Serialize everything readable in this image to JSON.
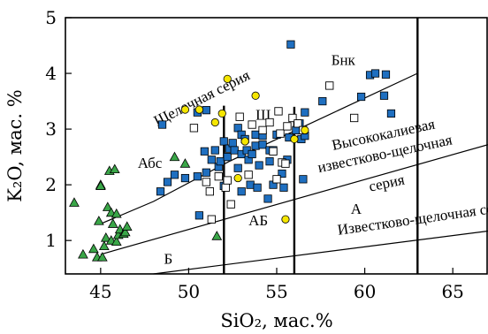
{
  "chart_data": {
    "type": "scatter",
    "xlabel": "SiO₂, мас.%",
    "ylabel": "K₂O, мас. %",
    "xlim": [
      43,
      67
    ],
    "ylim": [
      0.4,
      5
    ],
    "xticks": [
      45,
      50,
      55,
      60,
      65
    ],
    "yticks": [
      1,
      2,
      3,
      4,
      5
    ],
    "xtick_labels": [
      "45",
      "50",
      "55",
      "60",
      "65"
    ],
    "ytick_labels": [
      "1",
      "2",
      "3",
      "4",
      "5"
    ],
    "grid": false,
    "colors": {
      "triangle_fill": "#3aa648",
      "blue_square_fill": "#1f6fc0",
      "circle_fill": "#f5e600",
      "stroke": "#000000"
    },
    "boundary_lines": [
      {
        "name": "Щелочная серия boundary",
        "points": [
          [
            45,
            1.3
          ],
          [
            48,
            1.7
          ],
          [
            52.3,
            2.42
          ],
          [
            63,
            4.0
          ]
        ]
      },
      {
        "name": "Высококалиевая boundary",
        "points": [
          [
            45,
            0.75
          ],
          [
            67,
            2.72
          ]
        ]
      },
      {
        "name": "Известково-щелочная boundary",
        "points": [
          [
            48,
            0.4
          ],
          [
            67,
            1.17
          ]
        ]
      },
      {
        "name": "vertical 52",
        "points": [
          [
            52,
            0.4
          ],
          [
            52,
            3.42
          ]
        ]
      },
      {
        "name": "vertical 56",
        "points": [
          [
            56,
            0.4
          ],
          [
            56,
            3.4
          ]
        ]
      },
      {
        "name": "vertical 63",
        "points": [
          [
            63,
            0.4
          ],
          [
            63,
            5.0
          ]
        ]
      }
    ],
    "region_labels": [
      {
        "text": "Щелочная серия",
        "x": 48.2,
        "y": 3.05,
        "rotate": -27
      },
      {
        "text": "Бнк",
        "x": 58.1,
        "y": 4.15,
        "rotate": 0
      },
      {
        "text": "Ш",
        "x": 53.8,
        "y": 3.17,
        "rotate": 0
      },
      {
        "text": "Высококалиевая",
        "x": 58.2,
        "y": 2.62,
        "rotate": -12
      },
      {
        "text": "известково-щелочная",
        "x": 57.4,
        "y": 2.22,
        "rotate": -12
      },
      {
        "text": "серия",
        "x": 60.3,
        "y": 1.88,
        "rotate": -12
      },
      {
        "text": "Абс",
        "x": 47.1,
        "y": 2.3,
        "rotate": 0
      },
      {
        "text": "А",
        "x": 59.2,
        "y": 1.48,
        "rotate": 0
      },
      {
        "text": "АБ",
        "x": 53.4,
        "y": 1.27,
        "rotate": 0
      },
      {
        "text": "Известково-щелочная серия",
        "x": 58.5,
        "y": 1.1,
        "rotate": -8
      },
      {
        "text": "Б",
        "x": 48.6,
        "y": 0.58,
        "rotate": 0
      }
    ],
    "series": [
      {
        "marker": "triangle",
        "points": [
          [
            43.5,
            1.68
          ],
          [
            44.0,
            0.75
          ],
          [
            44.6,
            0.85
          ],
          [
            44.8,
            0.7
          ],
          [
            44.9,
            1.35
          ],
          [
            45.0,
            2.0
          ],
          [
            45.0,
            1.98
          ],
          [
            45.1,
            0.7
          ],
          [
            45.2,
            0.9
          ],
          [
            45.3,
            1.05
          ],
          [
            45.4,
            1.6
          ],
          [
            45.5,
            2.25
          ],
          [
            45.6,
            1.5
          ],
          [
            45.6,
            1.0
          ],
          [
            45.7,
            1.3
          ],
          [
            45.8,
            2.28
          ],
          [
            45.9,
            1.48
          ],
          [
            45.9,
            0.98
          ],
          [
            46.0,
            1.1
          ],
          [
            46.1,
            1.2
          ],
          [
            46.3,
            1.12
          ],
          [
            46.4,
            1.15
          ],
          [
            46.5,
            1.25
          ],
          [
            49.2,
            2.5
          ],
          [
            49.8,
            2.38
          ],
          [
            51.6,
            1.08
          ]
        ]
      },
      {
        "marker": "blue-square",
        "points": [
          [
            48.5,
            3.08
          ],
          [
            48.4,
            1.88
          ],
          [
            48.8,
            2.05
          ],
          [
            49.2,
            2.18
          ],
          [
            49.8,
            2.12
          ],
          [
            50.5,
            2.15
          ],
          [
            50.5,
            3.3
          ],
          [
            50.6,
            1.45
          ],
          [
            50.9,
            2.6
          ],
          [
            51.0,
            3.34
          ],
          [
            51.0,
            2.22
          ],
          [
            51.3,
            2.45
          ],
          [
            51.5,
            2.62
          ],
          [
            51.7,
            2.32
          ],
          [
            51.8,
            2.42
          ],
          [
            52.0,
            1.98
          ],
          [
            52.0,
            2.78
          ],
          [
            52.2,
            2.5
          ],
          [
            52.3,
            2.65
          ],
          [
            52.5,
            2.75
          ],
          [
            52.6,
            2.62
          ],
          [
            52.8,
            2.3
          ],
          [
            52.8,
            3.02
          ],
          [
            53.0,
            2.9
          ],
          [
            53.0,
            1.88
          ],
          [
            53.0,
            2.55
          ],
          [
            53.2,
            2.82
          ],
          [
            53.3,
            2.62
          ],
          [
            53.4,
            2.45
          ],
          [
            53.5,
            2.0
          ],
          [
            53.6,
            2.55
          ],
          [
            53.8,
            2.7
          ],
          [
            53.8,
            2.9
          ],
          [
            53.9,
            1.95
          ],
          [
            54.0,
            2.35
          ],
          [
            54.2,
            2.88
          ],
          [
            54.2,
            2.72
          ],
          [
            54.5,
            1.75
          ],
          [
            54.6,
            2.62
          ],
          [
            54.6,
            2.42
          ],
          [
            54.8,
            2.62
          ],
          [
            54.8,
            2.0
          ],
          [
            55.0,
            2.9
          ],
          [
            55.3,
            2.2
          ],
          [
            55.4,
            1.95
          ],
          [
            55.6,
            2.45
          ],
          [
            55.7,
            2.85
          ],
          [
            55.8,
            4.52
          ],
          [
            56.1,
            2.98
          ],
          [
            56.3,
            3.1
          ],
          [
            56.4,
            2.82
          ],
          [
            56.5,
            2.1
          ],
          [
            56.6,
            2.88
          ],
          [
            56.6,
            3.3
          ],
          [
            57.6,
            3.5
          ],
          [
            59.8,
            3.58
          ],
          [
            60.3,
            3.97
          ],
          [
            60.6,
            4.0
          ],
          [
            61.1,
            3.6
          ],
          [
            61.2,
            3.98
          ],
          [
            61.5,
            3.28
          ]
        ]
      },
      {
        "marker": "open-square",
        "points": [
          [
            50.3,
            3.02
          ],
          [
            51.0,
            2.05
          ],
          [
            51.2,
            1.88
          ],
          [
            51.3,
            1.38
          ],
          [
            51.7,
            2.15
          ],
          [
            52.1,
            1.95
          ],
          [
            52.2,
            2.08
          ],
          [
            52.4,
            1.65
          ],
          [
            52.9,
            3.22
          ],
          [
            53.4,
            2.18
          ],
          [
            53.6,
            3.08
          ],
          [
            54.2,
            2.98
          ],
          [
            54.6,
            3.12
          ],
          [
            54.8,
            2.6
          ],
          [
            55.0,
            2.1
          ],
          [
            55.1,
            3.32
          ],
          [
            55.2,
            2.92
          ],
          [
            55.3,
            2.4
          ],
          [
            55.5,
            2.38
          ],
          [
            55.6,
            3.05
          ],
          [
            55.9,
            3.2
          ],
          [
            56.2,
            3.1
          ],
          [
            56.5,
            2.98
          ],
          [
            58.0,
            3.78
          ],
          [
            59.4,
            3.2
          ]
        ]
      },
      {
        "marker": "circle",
        "points": [
          [
            49.8,
            3.35
          ],
          [
            50.6,
            3.35
          ],
          [
            51.5,
            3.12
          ],
          [
            51.9,
            3.28
          ],
          [
            52.2,
            3.9
          ],
          [
            52.8,
            2.12
          ],
          [
            53.2,
            2.78
          ],
          [
            53.8,
            3.6
          ],
          [
            55.5,
            1.38
          ],
          [
            56.0,
            2.82
          ],
          [
            56.6,
            2.98
          ]
        ]
      }
    ]
  }
}
